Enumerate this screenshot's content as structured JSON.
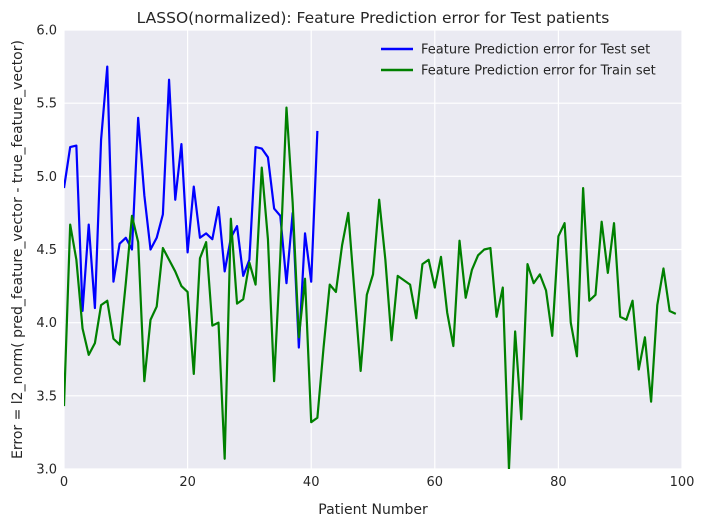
{
  "chart_data": {
    "type": "line",
    "title": "LASSO(normalized): Feature Prediction error for Test patients",
    "xlabel": "Patient Number",
    "ylabel": "Error = l2_norm( pred_feature_vector - true_feature_vector)",
    "xlim": [
      0,
      100
    ],
    "ylim": [
      3.0,
      6.0
    ],
    "xticks": [
      0,
      20,
      40,
      60,
      80,
      100
    ],
    "xtick_labels": [
      "0",
      "20",
      "40",
      "60",
      "80",
      "100"
    ],
    "yticks": [
      3.0,
      3.5,
      4.0,
      4.5,
      5.0,
      5.5,
      6.0
    ],
    "ytick_labels": [
      "3.0",
      "3.5",
      "4.0",
      "4.5",
      "5.0",
      "5.5",
      "6.0"
    ],
    "grid": true,
    "legend_position": "top-right",
    "series": [
      {
        "name": "Feature Prediction error for Test set",
        "color": "#0000ff",
        "x": [
          0,
          1,
          2,
          3,
          4,
          5,
          6,
          7,
          8,
          9,
          10,
          11,
          12,
          13,
          14,
          15,
          16,
          17,
          18,
          19,
          20,
          21,
          22,
          23,
          24,
          25,
          26,
          27,
          28,
          29,
          30,
          31,
          32,
          33,
          34,
          35,
          36,
          37,
          38,
          39,
          40,
          41
        ],
        "values": [
          4.92,
          5.2,
          5.21,
          4.08,
          4.67,
          4.1,
          5.25,
          5.75,
          4.28,
          4.54,
          4.58,
          4.5,
          5.4,
          4.87,
          4.5,
          4.58,
          4.74,
          5.66,
          4.84,
          5.22,
          4.48,
          4.93,
          4.58,
          4.61,
          4.57,
          4.79,
          4.35,
          4.58,
          4.66,
          4.32,
          4.43,
          5.2,
          5.19,
          5.13,
          4.78,
          4.73,
          4.27,
          4.75,
          3.83,
          4.61,
          4.28,
          5.31
        ]
      },
      {
        "name": "Feature Prediction error for Train set",
        "color": "#008000",
        "x": [
          0,
          1,
          2,
          3,
          4,
          5,
          6,
          7,
          8,
          9,
          10,
          11,
          12,
          13,
          14,
          15,
          16,
          17,
          18,
          19,
          20,
          21,
          22,
          23,
          24,
          25,
          26,
          27,
          28,
          29,
          30,
          31,
          32,
          33,
          34,
          35,
          36,
          37,
          38,
          39,
          40,
          41,
          42,
          43,
          44,
          45,
          46,
          47,
          48,
          49,
          50,
          51,
          52,
          53,
          54,
          55,
          56,
          57,
          58,
          59,
          60,
          61,
          62,
          63,
          64,
          65,
          66,
          67,
          68,
          69,
          70,
          71,
          72,
          73,
          74,
          75,
          76,
          77,
          78,
          79,
          80,
          81,
          82,
          83,
          84,
          85,
          86,
          87,
          88,
          89,
          90,
          91,
          92,
          93,
          94,
          95,
          96,
          97,
          98,
          99
        ],
        "values": [
          3.43,
          4.67,
          4.43,
          3.96,
          3.78,
          3.86,
          4.12,
          4.15,
          3.89,
          3.85,
          4.27,
          4.73,
          4.55,
          3.6,
          4.02,
          4.11,
          4.51,
          4.43,
          4.35,
          4.25,
          4.21,
          3.65,
          4.44,
          4.55,
          3.98,
          4.0,
          3.07,
          4.71,
          4.13,
          4.16,
          4.41,
          4.26,
          5.06,
          4.57,
          3.6,
          4.45,
          5.47,
          4.82,
          3.9,
          4.3,
          3.32,
          3.35,
          3.83,
          4.26,
          4.21,
          4.53,
          4.75,
          4.21,
          3.67,
          4.19,
          4.33,
          4.84,
          4.43,
          3.88,
          4.32,
          4.29,
          4.26,
          4.03,
          4.4,
          4.43,
          4.24,
          4.45,
          4.07,
          3.84,
          4.56,
          4.17,
          4.36,
          4.46,
          4.5,
          4.51,
          4.04,
          4.24,
          3.0,
          3.94,
          3.34,
          4.4,
          4.27,
          4.33,
          4.22,
          3.91,
          4.59,
          4.68,
          4.0,
          3.77,
          4.92,
          4.15,
          4.19,
          4.69,
          4.34,
          4.68,
          4.04,
          4.02,
          4.15,
          3.68,
          3.9,
          3.46,
          4.12,
          4.37,
          4.08,
          4.06
        ]
      }
    ]
  }
}
